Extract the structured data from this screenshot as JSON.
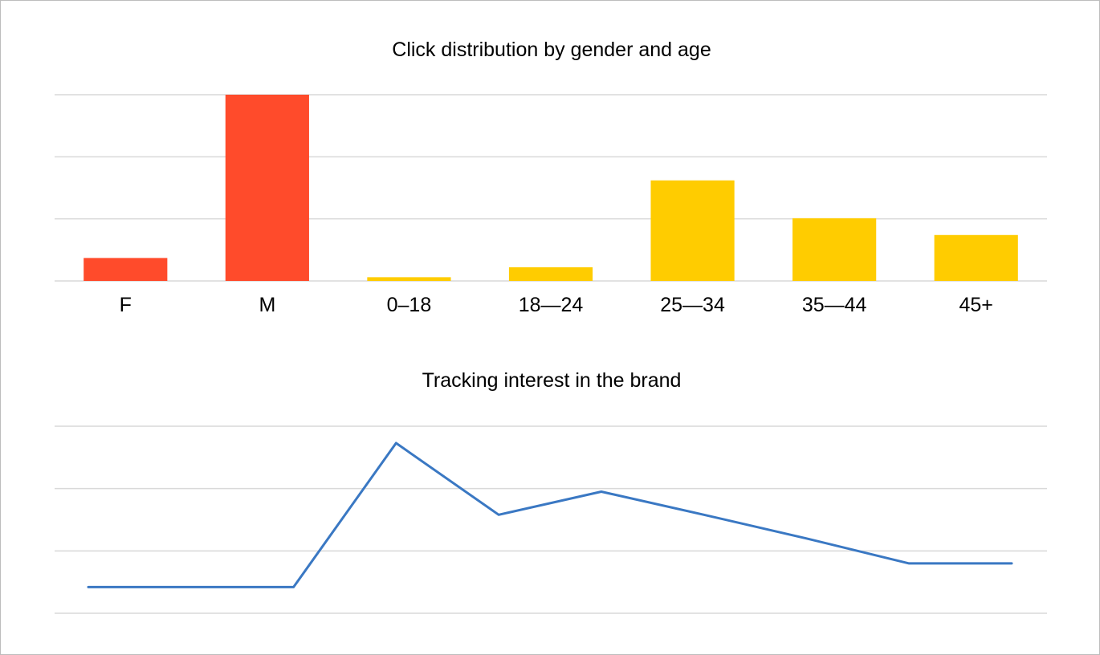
{
  "chart_data": [
    {
      "type": "bar",
      "title": "Click distribution by gender and age",
      "categories": [
        "F",
        "M",
        "0–18",
        "18—24",
        "25—34",
        "35—44",
        "45+"
      ],
      "values": [
        3.7,
        30,
        0.6,
        2.2,
        16.2,
        10.1,
        7.4
      ],
      "colors": [
        "#ff4b2b",
        "#ff4b2b",
        "#ffcc00",
        "#ffcc00",
        "#ffcc00",
        "#ffcc00",
        "#ffcc00"
      ],
      "ylim": [
        0,
        30
      ],
      "grid": true,
      "y_tick_labels_shown": false
    },
    {
      "type": "line",
      "title": "Tracking interest in the brand",
      "x": [
        1,
        2,
        3,
        4,
        5,
        6,
        7,
        8,
        9,
        10
      ],
      "values": [
        4.2,
        4.2,
        4.2,
        27.3,
        15.8,
        19.5,
        15.8,
        12.0,
        8.0,
        8.0
      ],
      "color": "#3a78c3",
      "ylim": [
        0,
        30
      ],
      "grid": true,
      "x_tick_labels_shown": false,
      "y_tick_labels_shown": false
    }
  ]
}
